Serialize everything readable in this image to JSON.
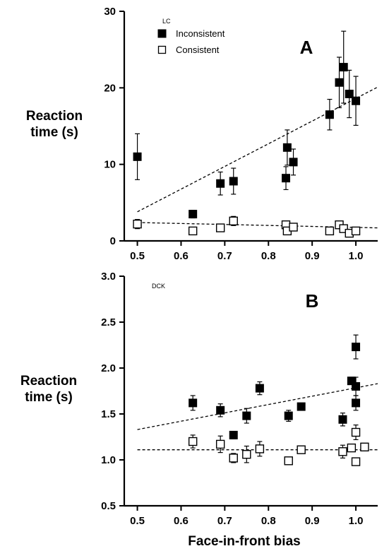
{
  "chart_data": [
    {
      "type": "scatter",
      "panel_letter": "A",
      "subject": "LC",
      "ylabel": "Reaction time (s)",
      "ylabel_lines": [
        "Reaction",
        "time (s)"
      ],
      "xlim": [
        0.47,
        1.05
      ],
      "ylim": [
        0,
        30
      ],
      "xticks": [
        0.5,
        0.6,
        0.7,
        0.8,
        0.9,
        1.0
      ],
      "xtick_labels": [
        "0.5",
        "0.6",
        "0.7",
        "0.8",
        "0.9",
        "1.0"
      ],
      "yticks": [
        0,
        10,
        20,
        30
      ],
      "ytick_labels": [
        "0",
        "10",
        "20",
        "30"
      ],
      "legend": {
        "position": "top-left",
        "entries": [
          {
            "label": "Inconsistent",
            "marker": "filled-square"
          },
          {
            "label": "Consistent",
            "marker": "open-square"
          }
        ]
      },
      "series": [
        {
          "name": "Inconsistent",
          "marker": "filled-square",
          "points": [
            {
              "x": 0.5,
              "y": 11.0,
              "err": 3.0
            },
            {
              "x": 0.627,
              "y": 3.5,
              "err": 0.5
            },
            {
              "x": 0.69,
              "y": 7.5,
              "err": 1.5
            },
            {
              "x": 0.72,
              "y": 7.8,
              "err": 1.7
            },
            {
              "x": 0.84,
              "y": 8.2,
              "err": 1.5
            },
            {
              "x": 0.843,
              "y": 12.2,
              "err": 2.3
            },
            {
              "x": 0.857,
              "y": 10.3,
              "err": 1.7
            },
            {
              "x": 0.94,
              "y": 16.5,
              "err": 2.0
            },
            {
              "x": 0.962,
              "y": 20.7,
              "err": 3.3
            },
            {
              "x": 0.972,
              "y": 22.7,
              "err": 4.7
            },
            {
              "x": 0.985,
              "y": 19.2,
              "err": 3.1
            },
            {
              "x": 1.0,
              "y": 18.3,
              "err": 3.2
            }
          ],
          "trend": {
            "x": [
              0.5,
              1.05
            ],
            "y": [
              3.8,
              20.1
            ]
          }
        },
        {
          "name": "Consistent",
          "marker": "open-square",
          "points": [
            {
              "x": 0.5,
              "y": 2.2,
              "err": 0.6
            },
            {
              "x": 0.627,
              "y": 1.3,
              "err": 0.3
            },
            {
              "x": 0.69,
              "y": 1.7,
              "err": 0.3
            },
            {
              "x": 0.72,
              "y": 2.6,
              "err": 0.6
            },
            {
              "x": 0.84,
              "y": 2.1,
              "err": 0.4
            },
            {
              "x": 0.843,
              "y": 1.3,
              "err": 0.3
            },
            {
              "x": 0.857,
              "y": 1.8,
              "err": 0.3
            },
            {
              "x": 0.94,
              "y": 1.3,
              "err": 0.3
            },
            {
              "x": 0.962,
              "y": 2.1,
              "err": 0.3
            },
            {
              "x": 0.972,
              "y": 1.6,
              "err": 0.3
            },
            {
              "x": 0.985,
              "y": 1.0,
              "err": 0.3
            },
            {
              "x": 1.0,
              "y": 1.3,
              "err": 0.3
            }
          ],
          "trend": {
            "x": [
              0.5,
              1.05
            ],
            "y": [
              2.4,
              1.7
            ]
          }
        }
      ]
    },
    {
      "type": "scatter",
      "panel_letter": "B",
      "subject": "DCK",
      "xlabel": "Face-in-front bias",
      "ylabel": "Reaction time (s)",
      "ylabel_lines": [
        "Reaction",
        "time (s)"
      ],
      "xlim": [
        0.47,
        1.05
      ],
      "ylim": [
        0.5,
        3.0
      ],
      "xticks": [
        0.5,
        0.6,
        0.7,
        0.8,
        0.9,
        1.0
      ],
      "xtick_labels": [
        "0.5",
        "0.6",
        "0.7",
        "0.8",
        "0.9",
        "1.0"
      ],
      "yticks": [
        0.5,
        1.0,
        1.5,
        2.0,
        2.5,
        3.0
      ],
      "ytick_labels": [
        "0.5",
        "1.0",
        "1.5",
        "2.0",
        "2.5",
        "3.0"
      ],
      "series": [
        {
          "name": "Inconsistent",
          "marker": "filled-square",
          "points": [
            {
              "x": 0.627,
              "y": 1.62,
              "err": 0.08
            },
            {
              "x": 0.69,
              "y": 1.54,
              "err": 0.07
            },
            {
              "x": 0.72,
              "y": 1.27,
              "err": 0.04
            },
            {
              "x": 0.75,
              "y": 1.48,
              "err": 0.08
            },
            {
              "x": 0.78,
              "y": 1.78,
              "err": 0.07
            },
            {
              "x": 0.846,
              "y": 1.48,
              "err": 0.06
            },
            {
              "x": 0.875,
              "y": 1.58,
              "err": 0.0
            },
            {
              "x": 0.97,
              "y": 1.44,
              "err": 0.07
            },
            {
              "x": 0.99,
              "y": 1.86,
              "err": 0.04
            },
            {
              "x": 1.0,
              "y": 1.8,
              "err": 0.1
            },
            {
              "x": 1.0,
              "y": 1.62,
              "err": 0.08
            },
            {
              "x": 1.0,
              "y": 2.23,
              "err": 0.13
            }
          ],
          "trend": {
            "x": [
              0.5,
              1.05
            ],
            "y": [
              1.33,
              1.83
            ]
          }
        },
        {
          "name": "Consistent",
          "marker": "open-square",
          "points": [
            {
              "x": 0.627,
              "y": 1.2,
              "err": 0.07
            },
            {
              "x": 0.69,
              "y": 1.17,
              "err": 0.09
            },
            {
              "x": 0.72,
              "y": 1.02,
              "err": 0.05
            },
            {
              "x": 0.75,
              "y": 1.06,
              "err": 0.09
            },
            {
              "x": 0.78,
              "y": 1.12,
              "err": 0.08
            },
            {
              "x": 0.846,
              "y": 0.99,
              "err": 0.04
            },
            {
              "x": 0.875,
              "y": 1.11,
              "err": 0.0
            },
            {
              "x": 0.97,
              "y": 1.09,
              "err": 0.07
            },
            {
              "x": 0.99,
              "y": 1.13,
              "err": 0.0
            },
            {
              "x": 1.0,
              "y": 1.3,
              "err": 0.08
            },
            {
              "x": 1.0,
              "y": 0.98,
              "err": 0.0
            },
            {
              "x": 1.02,
              "y": 1.14,
              "err": 0.0
            }
          ],
          "trend": {
            "x": [
              0.5,
              1.05
            ],
            "y": [
              1.11,
              1.11
            ]
          }
        }
      ]
    }
  ]
}
